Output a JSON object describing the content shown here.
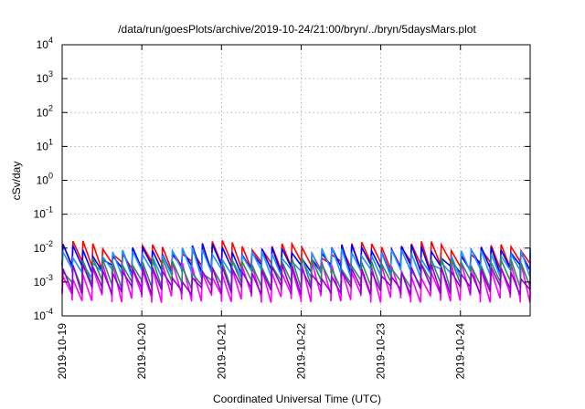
{
  "chart_data": {
    "type": "line",
    "title": "/data/run/goesPlots/archive/2019-10-24/21:00/bryn/../bryn/5daysMars.plot",
    "xlabel": "Coordinated Universal Time (UTC)",
    "ylabel": "cSv/day",
    "yscale": "log",
    "ylim": [
      0.0001,
      10000
    ],
    "y_ticks": [
      {
        "base": "10",
        "exp": "-4",
        "value": 0.0001
      },
      {
        "base": "10",
        "exp": "-3",
        "value": 0.001
      },
      {
        "base": "10",
        "exp": "-2",
        "value": 0.01
      },
      {
        "base": "10",
        "exp": "-1",
        "value": 0.1
      },
      {
        "base": "10",
        "exp": "0",
        "value": 1
      },
      {
        "base": "10",
        "exp": "1",
        "value": 10
      },
      {
        "base": "10",
        "exp": "2",
        "value": 100
      },
      {
        "base": "10",
        "exp": "3",
        "value": 1000
      },
      {
        "base": "10",
        "exp": "4",
        "value": 10000
      }
    ],
    "xlim": [
      "2019-10-19",
      "2019-10-24 21:00"
    ],
    "x_ticks": [
      "2019-10-19",
      "2019-10-20",
      "2019-10-21",
      "2019-10-22",
      "2019-10-23",
      "2019-10-24"
    ],
    "grid": true,
    "sawtooth_period_hours": 3,
    "series": [
      {
        "color": "#ff0000",
        "peak": 0.011,
        "trough": 0.0032
      },
      {
        "color": "#0000ff",
        "peak": 0.009,
        "trough": 0.0025
      },
      {
        "color": "#1e90ff",
        "peak": 0.007,
        "trough": 0.0019
      },
      {
        "color": "#ff00ff",
        "peak": 0.0026,
        "trough": 0.00035
      },
      {
        "color": "#2e8b57",
        "peak": 0.0035,
        "trough": 0.0009
      },
      {
        "color": "#9400d3",
        "peak": 0.0022,
        "trough": 0.0006
      }
    ]
  }
}
